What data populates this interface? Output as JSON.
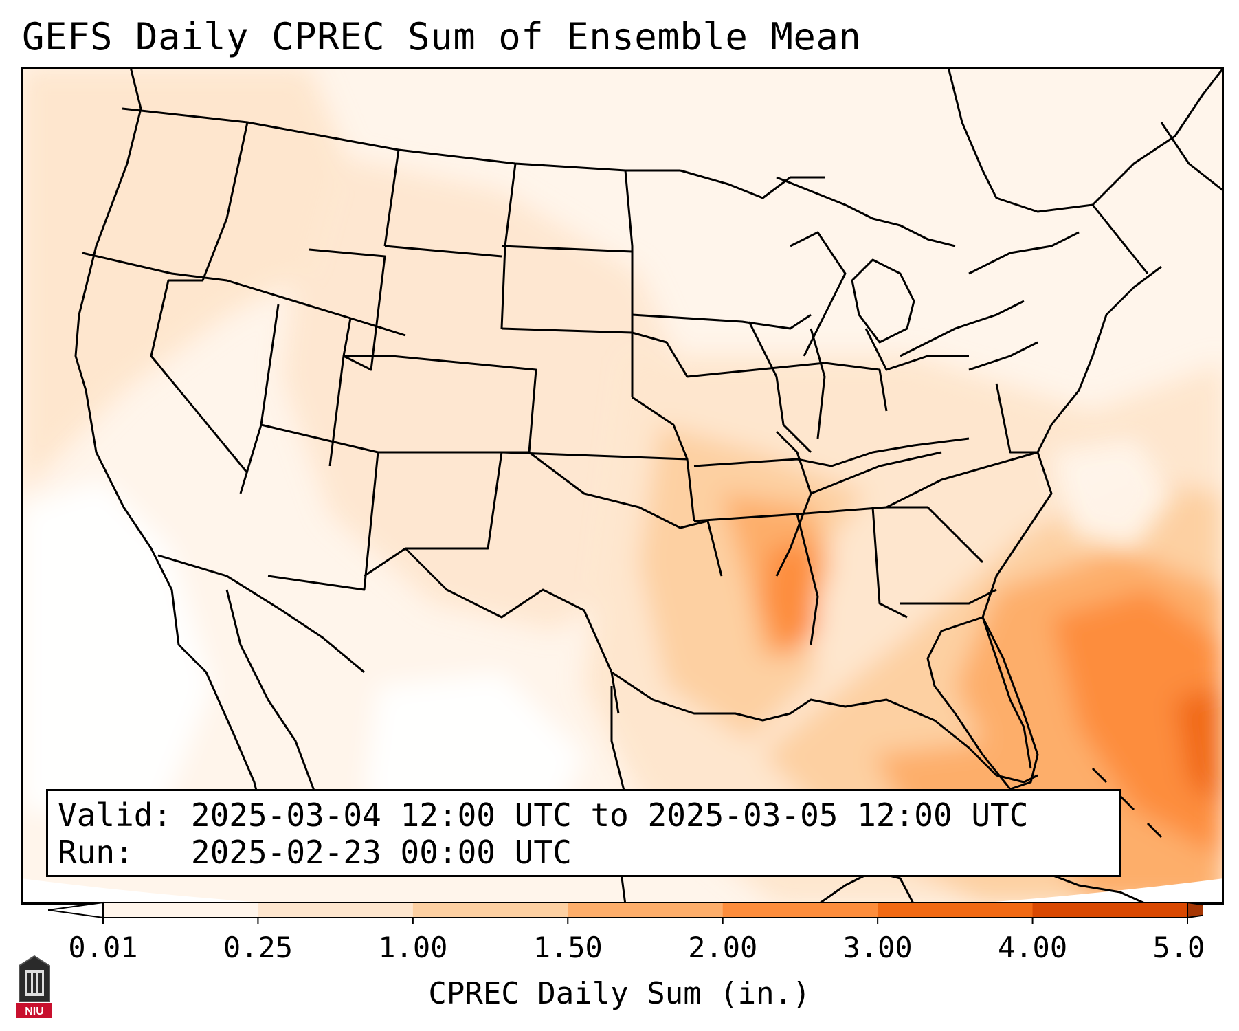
{
  "title": "GEFS Daily CPREC Sum of Ensemble Mean",
  "valid_label": "Valid:",
  "valid_value": "2025-03-04 12:00 UTC to 2025-03-05 12:00 UTC",
  "run_label": "Run:",
  "run_value": "2025-02-23 00:00 UTC",
  "colorbar": {
    "label": "CPREC Daily Sum (in.)",
    "ticks": [
      "0.01",
      "0.25",
      "1.00",
      "1.50",
      "2.00",
      "3.00",
      "4.00",
      "5.00"
    ],
    "colors": [
      "#fff5eb",
      "#fee6ce",
      "#fdd0a2",
      "#fdae6b",
      "#fd8d3c",
      "#f16913",
      "#d94801",
      "#a63603"
    ],
    "extend": "both"
  },
  "logo_text": "NIU",
  "colors": {
    "background": "#fff5eb",
    "light": "#fee6ce",
    "medium": "#fdd0a2",
    "strong": "#fdae6b",
    "heavy": "#fd8d3c",
    "max": "#f16913"
  }
}
